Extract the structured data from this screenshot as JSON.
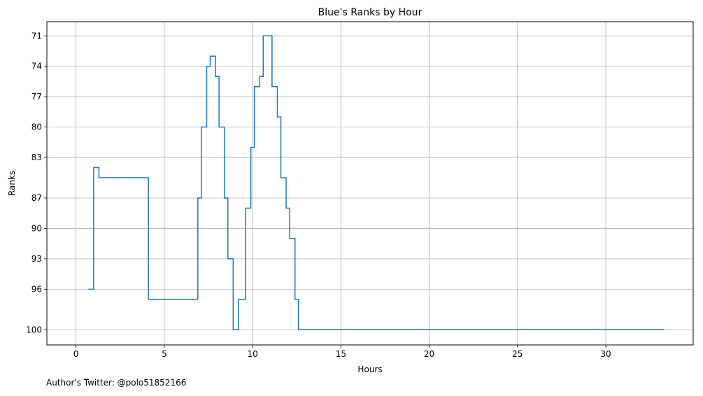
{
  "footer_text": "Author's Twitter: @polo51852166",
  "chart_data": {
    "type": "line",
    "drawstyle": "steps-post",
    "title": "Blue's Ranks by Hour",
    "xlabel": "Hours",
    "ylabel": "Ranks",
    "xlim": [
      -1.65,
      34.95
    ],
    "ylim": [
      101.5,
      69.6
    ],
    "y_inverted": true,
    "x_ticks": [
      0,
      5,
      10,
      15,
      20,
      25,
      30
    ],
    "x_tick_labels": [
      "0",
      "5",
      "10",
      "15",
      "20",
      "25",
      "30"
    ],
    "y_ticks": [
      71,
      74,
      77,
      80,
      83,
      87,
      90,
      93,
      96,
      100
    ],
    "y_tick_labels": [
      "71",
      "74",
      "77",
      "80",
      "83",
      "87",
      "90",
      "93",
      "96",
      "100"
    ],
    "grid": true,
    "series_color": "#1f77b4",
    "series": [
      {
        "x": [
          0.7,
          1.0,
          1.3,
          4.1,
          6.9,
          7.1,
          7.4,
          7.6,
          7.9,
          8.1,
          8.4,
          8.6,
          8.9,
          9.2,
          9.6,
          9.9,
          10.1,
          10.4,
          10.6,
          11.1,
          11.4,
          11.6,
          11.9,
          12.1,
          12.4,
          12.6,
          33.3
        ],
        "y": [
          96,
          84,
          85,
          97,
          87,
          80,
          74,
          73,
          75,
          80,
          87,
          93,
          100,
          97,
          88,
          82,
          76,
          75,
          71,
          76,
          79,
          85,
          88,
          91,
          97,
          100,
          100
        ]
      }
    ]
  }
}
